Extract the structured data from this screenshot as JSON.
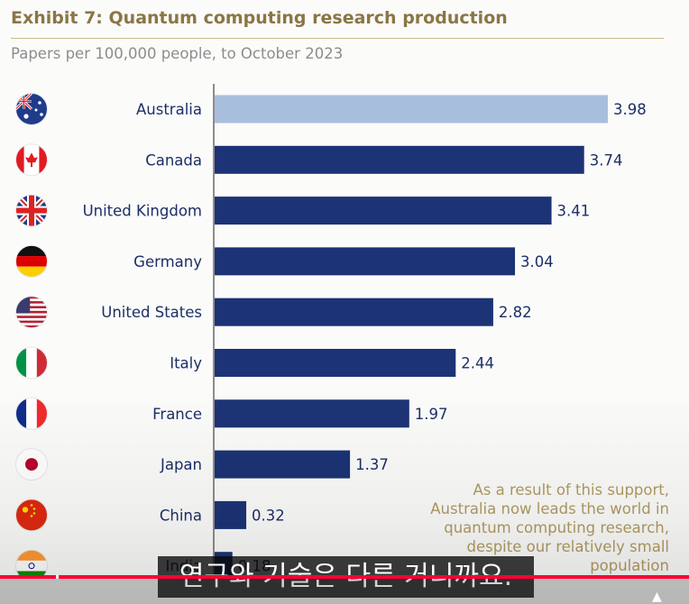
{
  "title": "Exhibit 7: Quantum computing research production",
  "subtitle": "Papers per 100,000 people, to October 2023",
  "caption": "As a result of this support, Australia now leads the world in quantum computing research, despite our relatively small population",
  "video_subtitle": "연구와 기술은 다른 거니까요.",
  "video_progress_percent": 100,
  "colors": {
    "highlight_bar": "#a9bedd",
    "bar": "#1c3375",
    "label": "#1c2f66",
    "title": "#8a7645",
    "caption": "#b19b62"
  },
  "chart_data": {
    "type": "bar",
    "orientation": "horizontal",
    "title": "Exhibit 7: Quantum computing research production",
    "subtitle": "Papers per 100,000 people, to October 2023",
    "categories": [
      "Australia",
      "Canada",
      "United Kingdom",
      "Germany",
      "United States",
      "Italy",
      "France",
      "Japan",
      "China",
      "India"
    ],
    "flags": [
      "australia-flag-icon",
      "canada-flag-icon",
      "united-kingdom-flag-icon",
      "germany-flag-icon",
      "united-states-flag-icon",
      "italy-flag-icon",
      "france-flag-icon",
      "japan-flag-icon",
      "china-flag-icon",
      "india-flag-icon"
    ],
    "values": [
      3.98,
      3.74,
      3.41,
      3.04,
      2.82,
      2.44,
      1.97,
      1.37,
      0.32,
      0.18
    ],
    "highlight": "Australia",
    "xlim": [
      0,
      4.0
    ],
    "xlabel": "",
    "ylabel": "",
    "grid": false,
    "legend": "none"
  }
}
